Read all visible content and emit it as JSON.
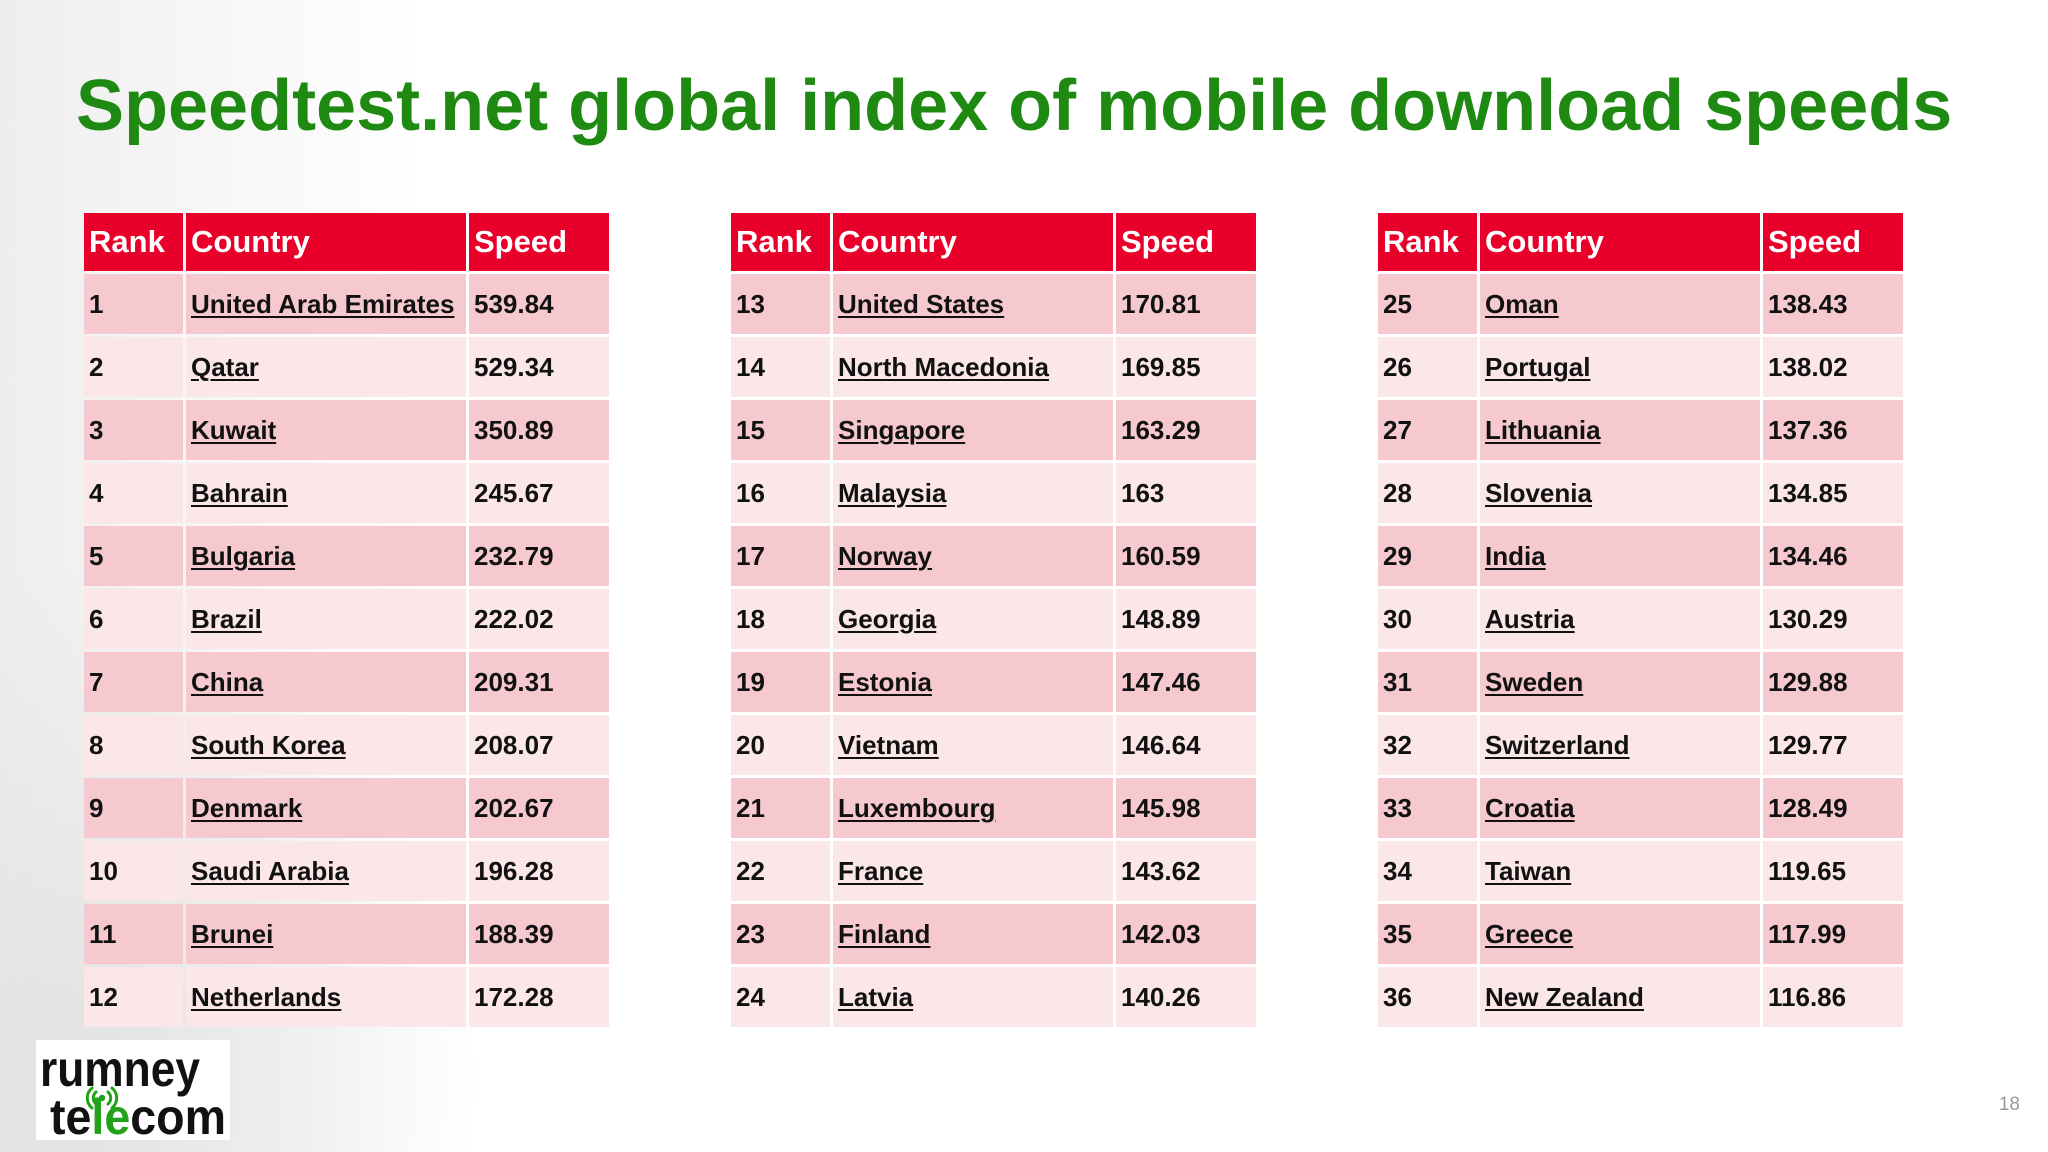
{
  "title": "Speedtest.net global index of mobile download speeds",
  "tables": [
    {
      "headers": {
        "rank": "Rank",
        "country": "Country",
        "speed": "Speed"
      },
      "rows": [
        {
          "rank": "1",
          "country": "United Arab Emirates",
          "speed": "539.84"
        },
        {
          "rank": "2",
          "country": "Qatar",
          "speed": "529.34"
        },
        {
          "rank": "3",
          "country": "Kuwait",
          "speed": "350.89"
        },
        {
          "rank": "4",
          "country": "Bahrain",
          "speed": "245.67"
        },
        {
          "rank": "5",
          "country": "Bulgaria",
          "speed": "232.79"
        },
        {
          "rank": "6",
          "country": "Brazil",
          "speed": "222.02"
        },
        {
          "rank": "7",
          "country": "China",
          "speed": "209.31"
        },
        {
          "rank": "8",
          "country": "South Korea",
          "speed": "208.07"
        },
        {
          "rank": "9",
          "country": "Denmark",
          "speed": "202.67"
        },
        {
          "rank": "10",
          "country": "Saudi Arabia",
          "speed": "196.28"
        },
        {
          "rank": "11",
          "country": "Brunei",
          "speed": "188.39"
        },
        {
          "rank": "12",
          "country": "Netherlands",
          "speed": "172.28"
        }
      ]
    },
    {
      "headers": {
        "rank": "Rank",
        "country": "Country",
        "speed": "Speed"
      },
      "rows": [
        {
          "rank": "13",
          "country": "United States",
          "speed": "170.81"
        },
        {
          "rank": "14",
          "country": "North Macedonia",
          "speed": "169.85"
        },
        {
          "rank": "15",
          "country": "Singapore",
          "speed": "163.29"
        },
        {
          "rank": "16",
          "country": "Malaysia",
          "speed": "163"
        },
        {
          "rank": "17",
          "country": "Norway",
          "speed": "160.59"
        },
        {
          "rank": "18",
          "country": "Georgia",
          "speed": "148.89"
        },
        {
          "rank": "19",
          "country": "Estonia",
          "speed": "147.46"
        },
        {
          "rank": "20",
          "country": "Vietnam",
          "speed": "146.64"
        },
        {
          "rank": "21",
          "country": "Luxembourg",
          "speed": "145.98"
        },
        {
          "rank": "22",
          "country": "France",
          "speed": "143.62"
        },
        {
          "rank": "23",
          "country": "Finland",
          "speed": "142.03"
        },
        {
          "rank": "24",
          "country": "Latvia",
          "speed": "140.26"
        }
      ]
    },
    {
      "headers": {
        "rank": "Rank",
        "country": "Country",
        "speed": "Speed"
      },
      "rows": [
        {
          "rank": "25",
          "country": "Oman",
          "speed": "138.43"
        },
        {
          "rank": "26",
          "country": "Portugal",
          "speed": "138.02"
        },
        {
          "rank": "27",
          "country": "Lithuania",
          "speed": "137.36"
        },
        {
          "rank": "28",
          "country": "Slovenia",
          "speed": "134.85"
        },
        {
          "rank": "29",
          "country": "India",
          "speed": "134.46"
        },
        {
          "rank": "30",
          "country": "Austria",
          "speed": "130.29"
        },
        {
          "rank": "31",
          "country": "Sweden",
          "speed": "129.88"
        },
        {
          "rank": "32",
          "country": "Switzerland",
          "speed": "129.77"
        },
        {
          "rank": "33",
          "country": "Croatia",
          "speed": "128.49"
        },
        {
          "rank": "34",
          "country": "Taiwan",
          "speed": "119.65"
        },
        {
          "rank": "35",
          "country": "Greece",
          "speed": "117.99"
        },
        {
          "rank": "36",
          "country": "New Zealand",
          "speed": "116.86"
        }
      ]
    }
  ],
  "logo": {
    "line1": "rumney",
    "line2_left": "te",
    "line2_mid": "le",
    "line2_right": "com",
    "icon": "radio-signal-icon"
  },
  "page_number": "18",
  "colors": {
    "title": "#1e8a12",
    "header": "#e8002a",
    "row_dark": "#f5c9ce",
    "row_light": "#fbe6e8",
    "logo_accent": "#22a11a"
  }
}
